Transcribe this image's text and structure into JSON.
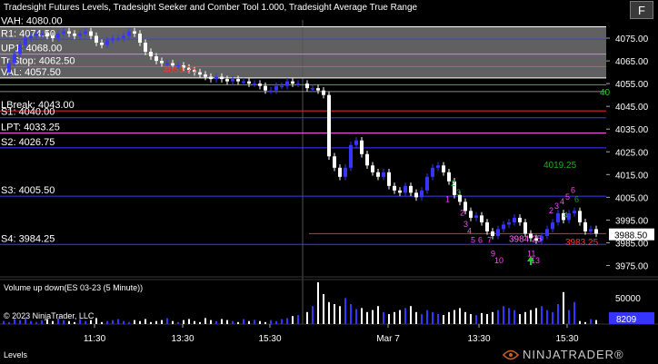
{
  "header": {
    "indicators_title": "Tradesight Futures Levels, Tradesight Seeker and Comber Tool 1.000, Tradesight Average True Range",
    "toolbar_button": "F"
  },
  "levels": [
    {
      "label": "VAH: 4080.00",
      "price": 4080.0,
      "color": "#ffffff",
      "left_label": true
    },
    {
      "label": "R1: 4074.50",
      "price": 4074.5,
      "color": "#3b3bff",
      "left_label": true
    },
    {
      "label": "UP1: 4068.00",
      "price": 4068.0,
      "color": "#ff66ff",
      "left_label": true
    },
    {
      "label": "Tr Stop: 4062.50",
      "price": 4062.5,
      "color": "#ff4444",
      "left_label": true
    },
    {
      "label": "VAL: 4057.50",
      "price": 4057.5,
      "color": "#ffffff",
      "left_label": true
    },
    {
      "label": "LBreak: 4043.00",
      "price": 4043.0,
      "color": "#ff2222",
      "left_label": true
    },
    {
      "label": "S1: 4040.00",
      "price": 4040.0,
      "color": "#3b3bff",
      "left_label": true
    },
    {
      "label": "LPT: 4033.25",
      "price": 4033.25,
      "color": "#ff66ff",
      "left_label": true
    },
    {
      "label": "S2: 4026.75",
      "price": 4026.75,
      "color": "#3b3bff",
      "left_label": true
    },
    {
      "label": "S3: 4005.50",
      "price": 4005.5,
      "color": "#3b3bff",
      "left_label": true
    },
    {
      "label": "S4: 3984.25",
      "price": 3984.25,
      "color": "#3b3bff",
      "left_label": true
    }
  ],
  "extra_lines": [
    {
      "price": 4054.5,
      "color": "#22cc22"
    },
    {
      "price": 4051.5,
      "color": "#888888"
    },
    {
      "price": 3989.0,
      "color": "#ff2222"
    }
  ],
  "chart_annotations": [
    {
      "text": "4053.25",
      "price": 4061.5,
      "x": 180,
      "color": "#ff3333"
    },
    {
      "text": "4019.25",
      "price": 4019.5,
      "x": 598,
      "color": "#22aa22"
    },
    {
      "text": "3984.25",
      "price": 3987.0,
      "x": 560,
      "color": "#ff66ff"
    },
    {
      "text": "3983.25",
      "price": 3985.5,
      "x": 622,
      "color": "#ff3333"
    },
    {
      "text": "40",
      "price": 4051.5,
      "x": 660,
      "color": "#22cc22"
    }
  ],
  "price_axis": {
    "ticks": [
      "4075.00",
      "4065.00",
      "4055.00",
      "4045.00",
      "4035.00",
      "4025.00",
      "4015.00",
      "4005.00",
      "3995.00",
      "3985.00",
      "3975.00"
    ],
    "current_price": "3988.50"
  },
  "volume_panel": {
    "title": "Volume up down(ES 03-23 (5 Minute))",
    "axis_tick": "50000",
    "current_volume": "8209",
    "copyright": "© 2023 NinjaTrader, LLC"
  },
  "time_axis": {
    "labels": [
      "11:30",
      "13:30",
      "15:30",
      "Mar 7",
      "13:30",
      "15:30"
    ]
  },
  "bottom": {
    "tab_label": "Levels",
    "logo_text": "NINJATRADER®"
  },
  "colors": {
    "up_bar": "#3535ff",
    "down_bar": "#ffffff",
    "zone_fill": "#808080",
    "grid": "#2a2a2a"
  }
}
